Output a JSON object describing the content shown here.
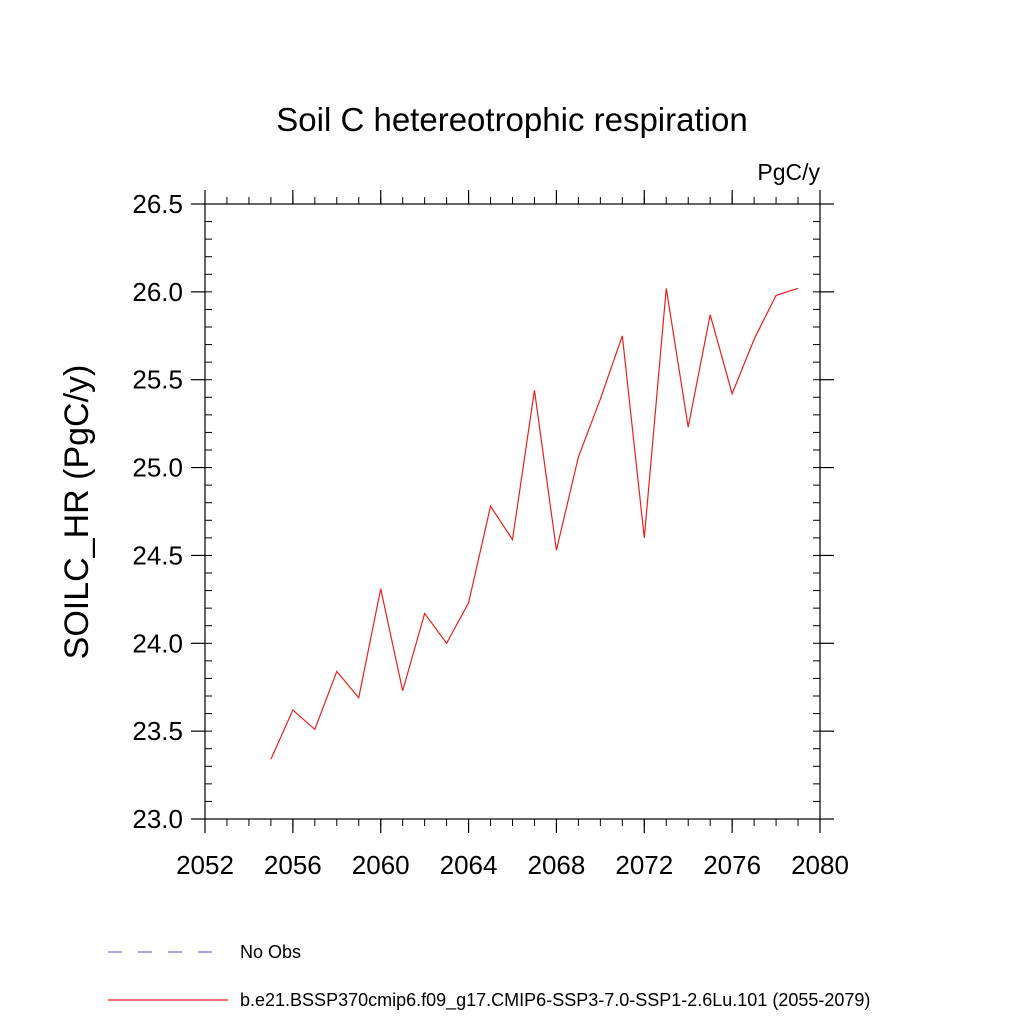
{
  "chart_data": {
    "type": "line",
    "title": "Soil C hetereotrophic respiration",
    "units_label": "PgC/y",
    "ylabel": "SOILC_HR  (PgC/y)",
    "xlabel": "",
    "xlim": [
      2052,
      2080
    ],
    "ylim": [
      23.0,
      26.5
    ],
    "x_ticks": [
      2052,
      2056,
      2060,
      2064,
      2068,
      2072,
      2076,
      2080
    ],
    "x_tick_labels": [
      "2052",
      "2056",
      "2060",
      "2064",
      "2068",
      "2072",
      "2076",
      "2080"
    ],
    "y_ticks": [
      23.0,
      23.5,
      24.0,
      24.5,
      25.0,
      25.5,
      26.0,
      26.5
    ],
    "y_tick_labels": [
      "23.0",
      "23.5",
      "24.0",
      "24.5",
      "25.0",
      "25.5",
      "26.0",
      "26.5"
    ],
    "grid": false,
    "legend_position": "bottom",
    "series": [
      {
        "name": "b.e21.BSSP370cmip6.f09_g17.CMIP6-SSP3-7.0-SSP1-2.6Lu.101 (2055-2079)",
        "color": "#e8201c",
        "style": "solid",
        "x": [
          2055,
          2056,
          2057,
          2058,
          2059,
          2060,
          2061,
          2062,
          2063,
          2064,
          2065,
          2066,
          2067,
          2068,
          2069,
          2070,
          2071,
          2072,
          2073,
          2074,
          2075,
          2076,
          2077,
          2078,
          2079
        ],
        "y": [
          23.34,
          23.62,
          23.51,
          23.84,
          23.69,
          24.31,
          23.73,
          24.17,
          24.0,
          24.23,
          24.78,
          24.59,
          25.44,
          24.53,
          25.06,
          25.39,
          25.75,
          24.6,
          26.02,
          25.23,
          25.87,
          25.42,
          25.73,
          25.98,
          26.02
        ]
      }
    ],
    "legend": [
      {
        "label": "No Obs",
        "color": "#7b6fb8",
        "style": "dashed"
      },
      {
        "label": "b.e21.BSSP370cmip6.f09_g17.CMIP6-SSP3-7.0-SSP1-2.6Lu.101 (2055-2079)",
        "color": "#e8201c",
        "style": "solid"
      }
    ]
  }
}
